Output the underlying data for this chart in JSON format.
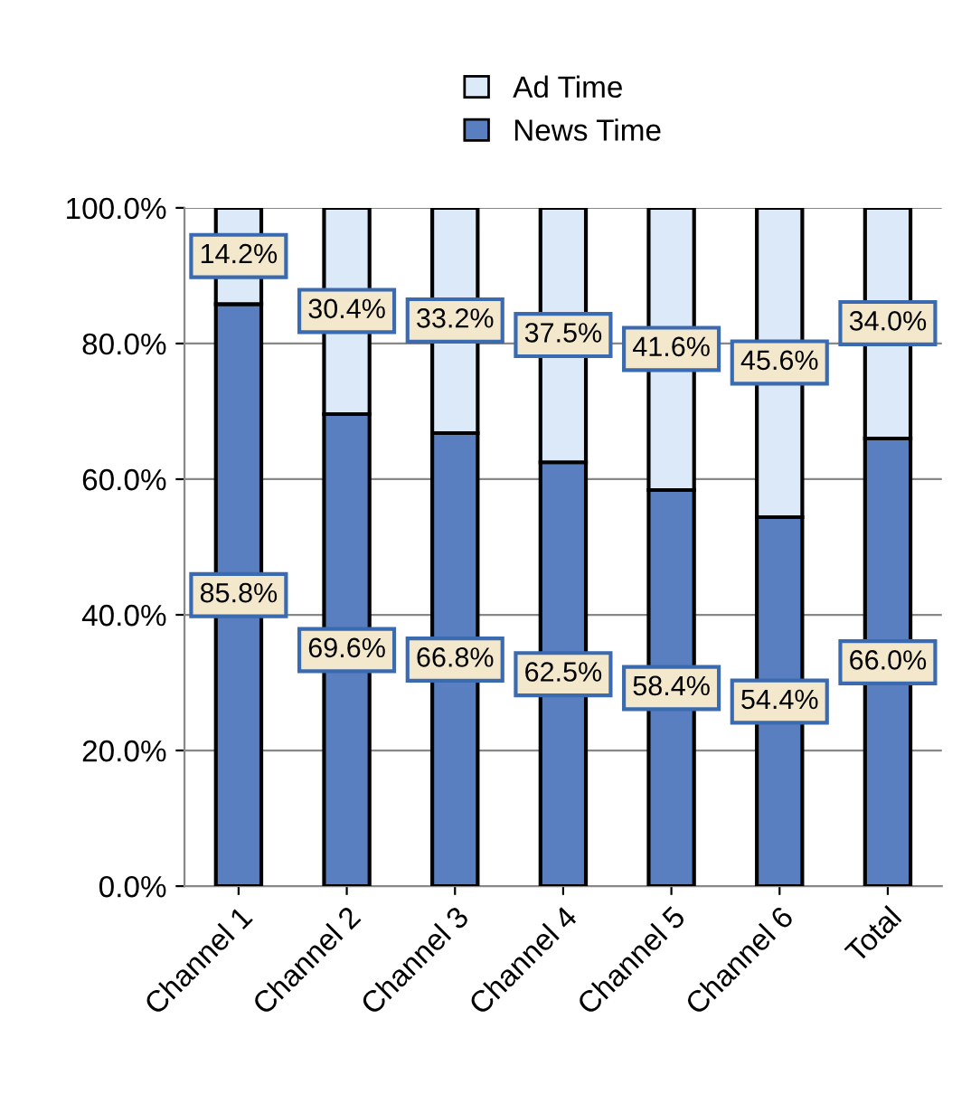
{
  "chart_data": {
    "type": "bar",
    "stacked": true,
    "categories": [
      "Channel 1",
      "Channel 2",
      "Channel 3",
      "Channel 4",
      "Channel 5",
      "Channel 6",
      "Total"
    ],
    "series": [
      {
        "name": "News Time",
        "color": "#5a7fc0",
        "values": [
          85.8,
          69.6,
          66.8,
          62.5,
          58.4,
          54.4,
          66.0
        ],
        "value_labels": [
          "85.8%",
          "69.6%",
          "66.8%",
          "62.5%",
          "58.4%",
          "54.4%",
          "66.0%"
        ]
      },
      {
        "name": "Ad Time",
        "color": "#dce9f8",
        "values": [
          14.2,
          30.4,
          33.2,
          37.5,
          41.6,
          45.6,
          34.0
        ],
        "value_labels": [
          "14.2%",
          "30.4%",
          "33.2%",
          "37.5%",
          "41.6%",
          "45.6%",
          "34.0%"
        ]
      }
    ],
    "ylim": [
      0,
      100
    ],
    "yticks": [
      {
        "value": 0,
        "label": "0.0%"
      },
      {
        "value": 20,
        "label": "20.0%"
      },
      {
        "value": 40,
        "label": "40.0%"
      },
      {
        "value": 60,
        "label": "60.0%"
      },
      {
        "value": 80,
        "label": "80.0%"
      },
      {
        "value": 100,
        "label": "100.0%"
      }
    ],
    "grid": "y",
    "legend": "top"
  }
}
